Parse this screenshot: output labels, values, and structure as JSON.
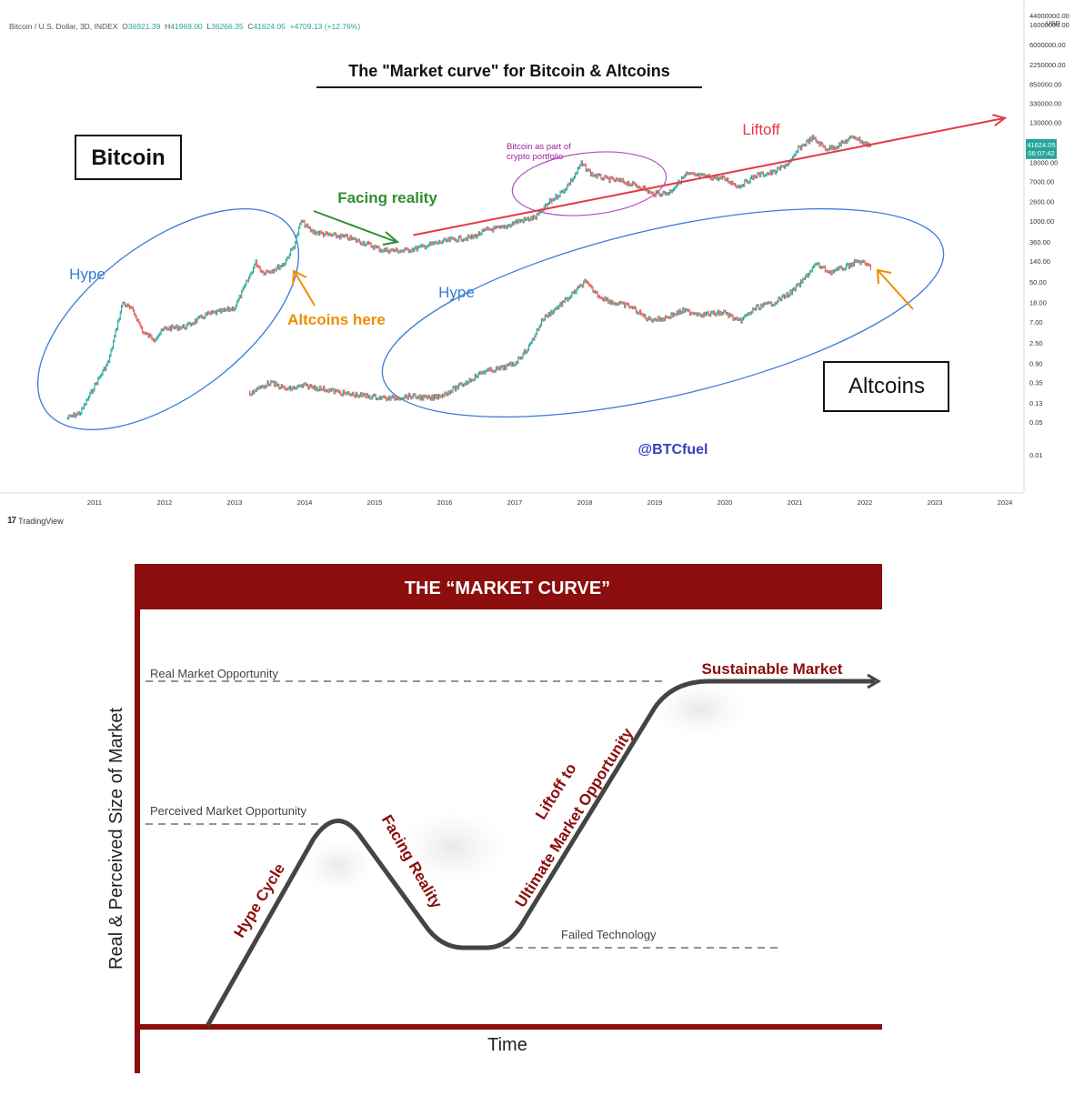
{
  "header": {
    "symbol": "Bitcoin / U.S. Dollar, 3D, INDEX",
    "o_label": "O",
    "o": "36921.39",
    "h_label": "H",
    "h": "41969.00",
    "l_label": "L",
    "l": "36266.35",
    "c_label": "C",
    "c": "41624.05",
    "change": "+4709.13 (+12.76%)"
  },
  "footer": {
    "brand": "TradingView"
  },
  "chart_data": [
    {
      "type": "candlestick-line",
      "title": "The \"Market curve\" for Bitcoin & Altcoins",
      "y_scale": "log",
      "y_unit": "USD",
      "y_ticks": [
        "44000000.00",
        "16000000.00",
        "6000000.00",
        "2250000.00",
        "850000.00",
        "330000.00",
        "130000.00",
        "18000.00",
        "7000.00",
        "2600.00",
        "1000.00",
        "360.00",
        "140.00",
        "50.00",
        "18.00",
        "7.00",
        "2.50",
        "0.90",
        "0.35",
        "0.13",
        "0.05",
        "0.01"
      ],
      "y_tick_values": [
        44000000,
        16000000,
        6000000,
        2250000,
        850000,
        330000,
        130000,
        18000,
        7000,
        2600,
        1000,
        360,
        140,
        50,
        18,
        7,
        2.5,
        0.9,
        0.35,
        0.13,
        0.05,
        0.01
      ],
      "price_label": {
        "price": "41624.05",
        "timer": "06:07:42",
        "value": 41624.05,
        "color": "#26a69a"
      },
      "x_ticks": [
        "2011",
        "2012",
        "2013",
        "2014",
        "2015",
        "2016",
        "2017",
        "2018",
        "2019",
        "2020",
        "2021",
        "2022",
        "2023",
        "2024"
      ],
      "x_tick_values": [
        2011,
        2012,
        2013,
        2014,
        2015,
        2016,
        2017,
        2018,
        2019,
        2020,
        2021,
        2022,
        2023,
        2024
      ],
      "series": [
        {
          "name": "Bitcoin",
          "points": [
            [
              2010.6,
              0.06
            ],
            [
              2010.8,
              0.08
            ],
            [
              2011.0,
              0.3
            ],
            [
              2011.2,
              1.0
            ],
            [
              2011.4,
              18
            ],
            [
              2011.55,
              12
            ],
            [
              2011.7,
              4
            ],
            [
              2011.85,
              3
            ],
            [
              2012.0,
              5
            ],
            [
              2012.3,
              5.5
            ],
            [
              2012.6,
              10
            ],
            [
              2012.85,
              12
            ],
            [
              2013.0,
              14
            ],
            [
              2013.2,
              60
            ],
            [
              2013.3,
              130
            ],
            [
              2013.4,
              80
            ],
            [
              2013.55,
              90
            ],
            [
              2013.7,
              120
            ],
            [
              2013.85,
              300
            ],
            [
              2013.95,
              1000
            ],
            [
              2014.1,
              600
            ],
            [
              2014.35,
              500
            ],
            [
              2014.6,
              450
            ],
            [
              2014.9,
              320
            ],
            [
              2015.1,
              240
            ],
            [
              2015.4,
              230
            ],
            [
              2015.6,
              260
            ],
            [
              2015.85,
              330
            ],
            [
              2016.1,
              400
            ],
            [
              2016.4,
              450
            ],
            [
              2016.6,
              650
            ],
            [
              2016.85,
              720
            ],
            [
              2017.0,
              950
            ],
            [
              2017.3,
              1200
            ],
            [
              2017.5,
              2600
            ],
            [
              2017.7,
              4500
            ],
            [
              2017.85,
              9000
            ],
            [
              2017.95,
              17000
            ],
            [
              2018.1,
              10000
            ],
            [
              2018.3,
              8000
            ],
            [
              2018.55,
              7000
            ],
            [
              2018.85,
              5000
            ],
            [
              2018.95,
              3800
            ],
            [
              2019.2,
              4000
            ],
            [
              2019.45,
              10000
            ],
            [
              2019.7,
              9000
            ],
            [
              2020.0,
              8000
            ],
            [
              2020.2,
              5500
            ],
            [
              2020.45,
              9500
            ],
            [
              2020.7,
              11000
            ],
            [
              2020.95,
              19000
            ],
            [
              2021.05,
              35000
            ],
            [
              2021.25,
              60000
            ],
            [
              2021.45,
              35000
            ],
            [
              2021.6,
              40000
            ],
            [
              2021.85,
              65000
            ],
            [
              2022.0,
              45000
            ],
            [
              2022.1,
              41624
            ]
          ]
        },
        {
          "name": "Altcoins",
          "points": [
            [
              2013.2,
              0.2
            ],
            [
              2013.5,
              0.35
            ],
            [
              2013.75,
              0.25
            ],
            [
              2014.0,
              0.3
            ],
            [
              2014.3,
              0.25
            ],
            [
              2014.6,
              0.2
            ],
            [
              2014.9,
              0.18
            ],
            [
              2015.2,
              0.16
            ],
            [
              2015.5,
              0.18
            ],
            [
              2015.8,
              0.16
            ],
            [
              2016.0,
              0.2
            ],
            [
              2016.3,
              0.35
            ],
            [
              2016.55,
              0.6
            ],
            [
              2016.8,
              0.7
            ],
            [
              2017.0,
              0.9
            ],
            [
              2017.2,
              2
            ],
            [
              2017.4,
              8
            ],
            [
              2017.6,
              14
            ],
            [
              2017.8,
              25
            ],
            [
              2018.0,
              50
            ],
            [
              2018.2,
              25
            ],
            [
              2018.4,
              18
            ],
            [
              2018.65,
              15
            ],
            [
              2018.9,
              8
            ],
            [
              2019.1,
              8
            ],
            [
              2019.4,
              12
            ],
            [
              2019.7,
              10
            ],
            [
              2020.0,
              11
            ],
            [
              2020.2,
              7
            ],
            [
              2020.45,
              14
            ],
            [
              2020.7,
              18
            ],
            [
              2020.95,
              30
            ],
            [
              2021.1,
              50
            ],
            [
              2021.3,
              120
            ],
            [
              2021.5,
              80
            ],
            [
              2021.7,
              100
            ],
            [
              2021.9,
              140
            ],
            [
              2022.0,
              120
            ],
            [
              2022.1,
              100
            ]
          ]
        }
      ],
      "trendline": {
        "from": [
          2015.55,
          500
        ],
        "to": [
          2024.0,
          160000
        ],
        "color": "#e63946"
      },
      "annotations": [
        {
          "text": "Bitcoin",
          "boxed": true,
          "color": "#111111"
        },
        {
          "text": "Hype",
          "color": "#3a7bd5"
        },
        {
          "text": "Altcoins here",
          "color": "#f08c00"
        },
        {
          "text": "Facing reality",
          "color": "#2f8f2f"
        },
        {
          "text": "Bitcoin as part of",
          "color": "#a020a0"
        },
        {
          "text": "crypto portfolio",
          "color": "#a020a0"
        },
        {
          "text": "Liftoff",
          "color": "#e63946"
        },
        {
          "text": "Hype",
          "color": "#3a7bd5"
        },
        {
          "text": "Altcoins",
          "boxed": true,
          "color": "#111111"
        },
        {
          "text": "@BTCfuel",
          "color": "#3b3fbf"
        }
      ]
    },
    {
      "type": "line",
      "title": "THE “MARKET CURVE”",
      "xlabel": "Time",
      "ylabel": "Real & Perceived Size of Market",
      "accent_color": "#8b0d0d",
      "levels": [
        {
          "label": "Real Market Opportunity"
        },
        {
          "label": "Perceived Market Opportunity"
        },
        {
          "label": "Failed Technology"
        }
      ],
      "phases": [
        "Hype Cycle",
        "Facing Reality",
        "Liftoff to",
        "Ultimate Market Opportunity",
        "Sustainable Market"
      ]
    }
  ]
}
